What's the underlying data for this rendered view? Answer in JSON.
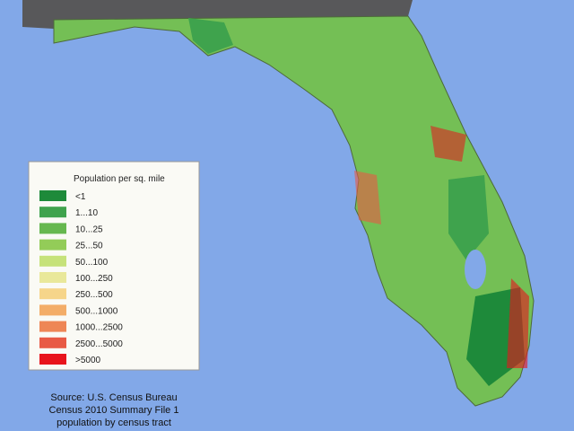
{
  "legend": {
    "title": "Population per sq. mile",
    "items": [
      {
        "label": "<1",
        "color": "#1e8a3a"
      },
      {
        "label": "1...10",
        "color": "#3fa34d"
      },
      {
        "label": "10...25",
        "color": "#66b84f"
      },
      {
        "label": "25...50",
        "color": "#93cc58"
      },
      {
        "label": "50...100",
        "color": "#c6e27a"
      },
      {
        "label": "100...250",
        "color": "#e9e89a"
      },
      {
        "label": "250...500",
        "color": "#f6d58a"
      },
      {
        "label": "500...1000",
        "color": "#f3ad68"
      },
      {
        "label": "1000...2500",
        "color": "#ee8656"
      },
      {
        "label": "2500...5000",
        "color": "#e85a45"
      },
      {
        "label": ">5000",
        "color": "#e8141c"
      }
    ]
  },
  "source": [
    "Source: U.S. Census Bureau",
    "Census 2010 Summary File 1",
    "population by census tract"
  ]
}
